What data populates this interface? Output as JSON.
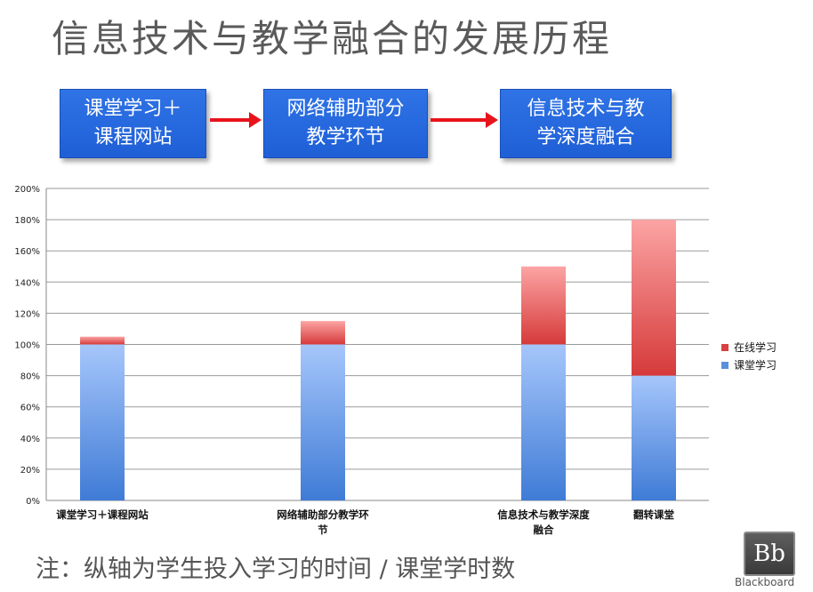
{
  "title": "信息技术与教学融合的发展历程",
  "flow": {
    "steps": [
      {
        "line1": "课堂学习＋",
        "line2": "课程网站"
      },
      {
        "line1": "网络辅助部分",
        "line2": "教学环节"
      },
      {
        "line1": "信息技术与教",
        "line2": "学深度融合"
      }
    ],
    "arrow_color": "#e8141c"
  },
  "chart_data": {
    "type": "bar",
    "stacked": true,
    "categories": [
      [
        "课堂学习＋课程网站"
      ],
      [
        "网络辅助部分教学环",
        "节"
      ],
      [
        "信息技术与教学深度",
        "融合"
      ],
      [
        "翻转课堂"
      ]
    ],
    "series": [
      {
        "name": "课堂学习",
        "values": [
          100,
          100,
          100,
          80
        ],
        "color": "#5b8fdc"
      },
      {
        "name": "在线学习",
        "values": [
          5,
          15,
          50,
          100
        ],
        "color": "#d94040"
      }
    ],
    "y_ticks": [
      "0%",
      "20%",
      "40%",
      "60%",
      "80%",
      "100%",
      "120%",
      "140%",
      "160%",
      "180%",
      "200%"
    ],
    "ylim": [
      0,
      200
    ],
    "grid": true,
    "legend_position": "right"
  },
  "note": "注：纵轴为学生投入学习的时间 / 课堂学时数",
  "logo": {
    "mark": "Bb",
    "text": "Blackboard"
  }
}
